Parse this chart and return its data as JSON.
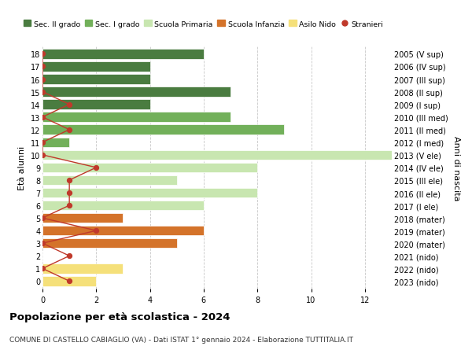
{
  "ages": [
    18,
    17,
    16,
    15,
    14,
    13,
    12,
    11,
    10,
    9,
    8,
    7,
    6,
    5,
    4,
    3,
    2,
    1,
    0
  ],
  "years": [
    "2005 (V sup)",
    "2006 (IV sup)",
    "2007 (III sup)",
    "2008 (II sup)",
    "2009 (I sup)",
    "2010 (III med)",
    "2011 (II med)",
    "2012 (I med)",
    "2013 (V ele)",
    "2014 (IV ele)",
    "2015 (III ele)",
    "2016 (II ele)",
    "2017 (I ele)",
    "2018 (mater)",
    "2019 (mater)",
    "2020 (mater)",
    "2021 (nido)",
    "2022 (nido)",
    "2023 (nido)"
  ],
  "bar_values": [
    6,
    4,
    4,
    7,
    4,
    7,
    9,
    1,
    13,
    8,
    5,
    8,
    6,
    3,
    6,
    5,
    0,
    3,
    2
  ],
  "bar_colors": [
    "#4a7c40",
    "#4a7c40",
    "#4a7c40",
    "#4a7c40",
    "#4a7c40",
    "#72b05a",
    "#72b05a",
    "#72b05a",
    "#c8e6b0",
    "#c8e6b0",
    "#c8e6b0",
    "#c8e6b0",
    "#c8e6b0",
    "#d4732a",
    "#d4732a",
    "#d4732a",
    "#f5e07a",
    "#f5e07a",
    "#f5e07a"
  ],
  "stranieri_x": [
    0,
    0,
    0,
    0,
    1,
    0,
    1,
    0,
    0,
    2,
    1,
    1,
    1,
    0,
    2,
    0,
    1,
    0,
    1
  ],
  "title": "Popolazione per età scolastica - 2024",
  "subtitle": "COMUNE DI CASTELLO CABIAGLIO (VA) - Dati ISTAT 1° gennaio 2024 - Elaborazione TUTTITALIA.IT",
  "ylabel_left": "Età alunni",
  "ylabel_right": "Anni di nascita",
  "xlim": [
    0,
    13
  ],
  "xticks": [
    0,
    2,
    4,
    6,
    8,
    10,
    12
  ],
  "legend_labels": [
    "Sec. II grado",
    "Sec. I grado",
    "Scuola Primaria",
    "Scuola Infanzia",
    "Asilo Nido",
    "Stranieri"
  ],
  "legend_colors": [
    "#4a7c40",
    "#72b05a",
    "#c8e6b0",
    "#d4732a",
    "#f5e07a",
    "#c0392b"
  ],
  "stranieri_color": "#c0392b",
  "bg_color": "#ffffff",
  "grid_color": "#c8c8c8"
}
